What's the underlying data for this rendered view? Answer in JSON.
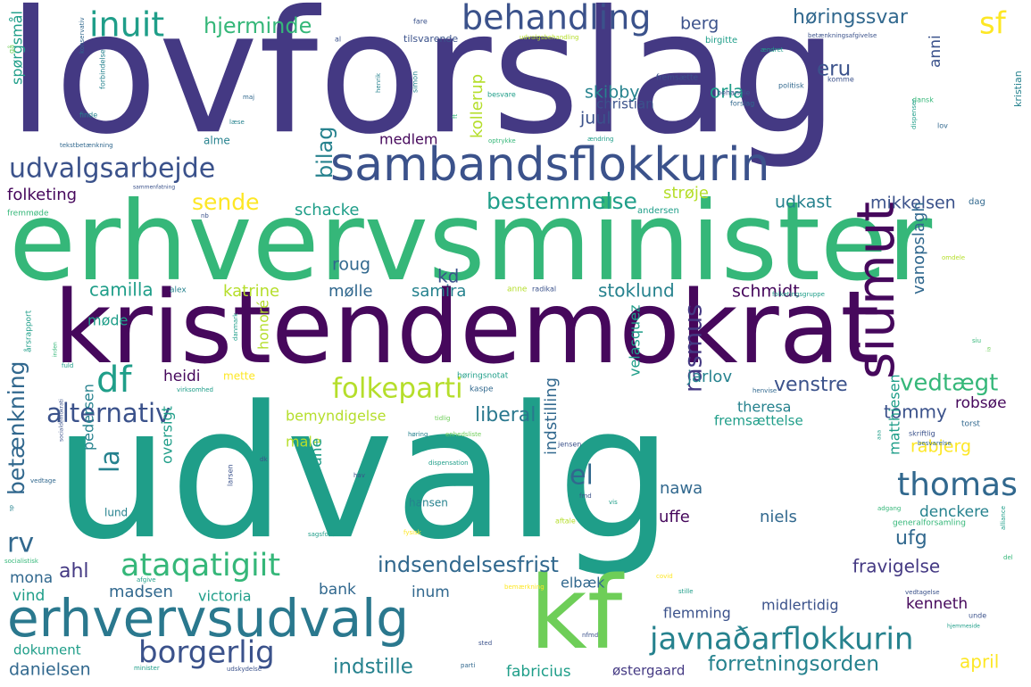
{
  "palette": {
    "c0": "#443983",
    "c1": "#3b528b",
    "c2": "#31688e",
    "c3": "#26828e",
    "c4": "#1f9e89",
    "c5": "#35b779",
    "c6": "#6ece58",
    "c7": "#b5de2b",
    "c8": "#fde725",
    "c9": "#46085c",
    "c10": "#2a788e"
  },
  "words": [
    {
      "text": "lovforslag",
      "color": "c0"
    },
    {
      "text": "erhvervsminister",
      "color": "c5"
    },
    {
      "text": "kristendemokrat",
      "color": "c9"
    },
    {
      "text": "udvalg",
      "color": "c4"
    },
    {
      "text": "sambandsflokkurin",
      "color": "c1"
    },
    {
      "text": "erhvervsudvalg",
      "color": "c10"
    },
    {
      "text": "kf",
      "color": "c6"
    },
    {
      "text": "siumut",
      "color": "c9"
    },
    {
      "text": "behandling",
      "color": "c1"
    },
    {
      "text": "inuit",
      "color": "c4"
    },
    {
      "text": "udvalgsarbejde",
      "color": "c1"
    },
    {
      "text": "javnaðarflokkurin",
      "color": "c3"
    },
    {
      "text": "ataqatigiit",
      "color": "c5"
    },
    {
      "text": "borgerlig",
      "color": "c1"
    },
    {
      "text": "thomas",
      "color": "c2"
    },
    {
      "text": "folkeparti",
      "color": "c7"
    },
    {
      "text": "alternativ",
      "color": "c1"
    },
    {
      "text": "df",
      "color": "c4"
    },
    {
      "text": "rv",
      "color": "c2"
    },
    {
      "text": "sf",
      "color": "c8"
    },
    {
      "text": "hjerminde",
      "color": "c5"
    },
    {
      "text": "høringssvar",
      "color": "c2"
    },
    {
      "text": "bestemmelse",
      "color": "c4"
    },
    {
      "text": "sende",
      "color": "c8"
    },
    {
      "text": "betænkning",
      "color": "c2"
    },
    {
      "text": "bilag",
      "color": "c3"
    },
    {
      "text": "vedtægt",
      "color": "c5"
    },
    {
      "text": "indsendelsesfrist",
      "color": "c2"
    },
    {
      "text": "forretningsorden",
      "color": "c3"
    },
    {
      "text": "indstille",
      "color": "c3"
    },
    {
      "text": "rasmus",
      "color": "c0"
    },
    {
      "text": "el",
      "color": "c2"
    },
    {
      "text": "la",
      "color": "c3"
    },
    {
      "text": "venstre",
      "color": "c1"
    },
    {
      "text": "liberal",
      "color": "c10"
    },
    {
      "text": "eru",
      "color": "c1"
    },
    {
      "text": "skibby",
      "color": "c3"
    },
    {
      "text": "orla",
      "color": "c4"
    },
    {
      "text": "juul",
      "color": "c1"
    },
    {
      "text": "berg",
      "color": "c1"
    },
    {
      "text": "kollerup",
      "color": "c7"
    },
    {
      "text": "udkast",
      "color": "c3"
    },
    {
      "text": "mikkelsen",
      "color": "c1"
    },
    {
      "text": "strøje",
      "color": "c7"
    },
    {
      "text": "schacke",
      "color": "c4"
    },
    {
      "text": "folketing",
      "color": "c9"
    },
    {
      "text": "spørgsmål",
      "color": "c4"
    },
    {
      "text": "medlem",
      "color": "c9"
    },
    {
      "text": "christian",
      "color": "c1"
    },
    {
      "text": "anni",
      "color": "c1"
    },
    {
      "text": "kristian",
      "color": "c3"
    },
    {
      "text": "roug",
      "color": "c2"
    },
    {
      "text": "kd",
      "color": "c1"
    },
    {
      "text": "camilla",
      "color": "c4"
    },
    {
      "text": "katrine",
      "color": "c7"
    },
    {
      "text": "mølle",
      "color": "c2"
    },
    {
      "text": "samira",
      "color": "c3"
    },
    {
      "text": "stoklund",
      "color": "c3"
    },
    {
      "text": "schmidt",
      "color": "c9"
    },
    {
      "text": "vanopslagh",
      "color": "c2"
    },
    {
      "text": "møde",
      "color": "c4"
    },
    {
      "text": "heidi",
      "color": "c9"
    },
    {
      "text": "honoré",
      "color": "c7"
    },
    {
      "text": "jarlov",
      "color": "c3"
    },
    {
      "text": "tommy",
      "color": "c1"
    },
    {
      "text": "theresa",
      "color": "c3"
    },
    {
      "text": "robsøe",
      "color": "c9"
    },
    {
      "text": "rabjerg",
      "color": "c8"
    },
    {
      "text": "bemyndigelse",
      "color": "c7"
    },
    {
      "text": "male",
      "color": "c7"
    },
    {
      "text": "fremsættelse",
      "color": "c4"
    },
    {
      "text": "velasquez",
      "color": "c4"
    },
    {
      "text": "matthiesen",
      "color": "c4"
    },
    {
      "text": "pedersen",
      "color": "c3"
    },
    {
      "text": "rune",
      "color": "c4"
    },
    {
      "text": "oversigt",
      "color": "c4"
    },
    {
      "text": "nawa",
      "color": "c2"
    },
    {
      "text": "denckere",
      "color": "c3"
    },
    {
      "text": "niels",
      "color": "c2"
    },
    {
      "text": "indstilling",
      "color": "c2"
    },
    {
      "text": "uffe",
      "color": "c9"
    },
    {
      "text": "ufg",
      "color": "c2"
    },
    {
      "text": "fravigelse",
      "color": "c0"
    },
    {
      "text": "ahl",
      "color": "c0"
    },
    {
      "text": "mona",
      "color": "c2"
    },
    {
      "text": "vind",
      "color": "c4"
    },
    {
      "text": "madsen",
      "color": "c2"
    },
    {
      "text": "victoria",
      "color": "c4"
    },
    {
      "text": "bank",
      "color": "c2"
    },
    {
      "text": "inum",
      "color": "c2"
    },
    {
      "text": "elbæk",
      "color": "c2"
    },
    {
      "text": "kenneth",
      "color": "c9"
    },
    {
      "text": "flemming",
      "color": "c1"
    },
    {
      "text": "midlertidig",
      "color": "c1"
    },
    {
      "text": "danielsen",
      "color": "c2"
    },
    {
      "text": "fabricius",
      "color": "c4"
    },
    {
      "text": "østergaard",
      "color": "c0"
    },
    {
      "text": "april",
      "color": "c8"
    },
    {
      "text": "dokument",
      "color": "c4"
    },
    {
      "text": "lund",
      "color": "c3"
    },
    {
      "text": "hansen",
      "color": "c3"
    },
    {
      "text": "alme",
      "color": "c3"
    },
    {
      "text": "mette",
      "color": "c8"
    },
    {
      "text": "tilsvarende",
      "color": "c1"
    },
    {
      "text": "birgitte",
      "color": "c4"
    },
    {
      "text": "fremsætte",
      "color": "c1"
    },
    {
      "text": "forslag",
      "color": "c2"
    },
    {
      "text": "behandle",
      "color": "c1"
    },
    {
      "text": "politisk",
      "color": "c2"
    },
    {
      "text": "komme",
      "color": "c1"
    },
    {
      "text": "dansk",
      "color": "c5"
    },
    {
      "text": "lov",
      "color": "c2"
    },
    {
      "text": "dag",
      "color": "c2"
    },
    {
      "text": "andersen",
      "color": "c4"
    },
    {
      "text": "betænkningsafgivelse",
      "color": "c1"
    },
    {
      "text": "udvalgsbehandling",
      "color": "c7"
    },
    {
      "text": "ændret",
      "color": "c4"
    },
    {
      "text": "fare",
      "color": "c1"
    },
    {
      "text": "konservativ",
      "color": "c2"
    },
    {
      "text": "forbindelse",
      "color": "c3"
    },
    {
      "text": "henrik",
      "color": "c3"
    },
    {
      "text": "simon",
      "color": "c3"
    },
    {
      "text": "besvare",
      "color": "c4"
    },
    {
      "text": "finde",
      "color": "c3"
    },
    {
      "text": "læse",
      "color": "c3"
    },
    {
      "text": "tekstbetænkning",
      "color": "c2"
    },
    {
      "text": "optrykke",
      "color": "c5"
    },
    {
      "text": "ændring",
      "color": "c4"
    },
    {
      "text": "sammenfatning",
      "color": "c1"
    },
    {
      "text": "fremmøde",
      "color": "c5"
    },
    {
      "text": "dispenser",
      "color": "c4"
    },
    {
      "text": "al",
      "color": "c1"
    },
    {
      "text": "gå",
      "color": "c6"
    },
    {
      "text": "maj",
      "color": "c2"
    },
    {
      "text": "ft",
      "color": "c5"
    },
    {
      "text": "nb",
      "color": "c1"
    },
    {
      "text": "alex",
      "color": "c3"
    },
    {
      "text": "anne",
      "color": "c7"
    },
    {
      "text": "radikal",
      "color": "c1"
    },
    {
      "text": "folketingsgruppe",
      "color": "c4"
    },
    {
      "text": "omdele",
      "color": "c7"
    },
    {
      "text": "danmark",
      "color": "c4"
    },
    {
      "text": "årsrapport",
      "color": "c4"
    },
    {
      "text": "inden",
      "color": "c5"
    },
    {
      "text": "fuld",
      "color": "c4"
    },
    {
      "text": "virksomhed",
      "color": "c4"
    },
    {
      "text": "høringsnotat",
      "color": "c4"
    },
    {
      "text": "kaspe",
      "color": "c2"
    },
    {
      "text": "henvise",
      "color": "c2"
    },
    {
      "text": "torst",
      "color": "c2"
    },
    {
      "text": "siu",
      "color": "c5"
    },
    {
      "text": "ia",
      "color": "c6"
    },
    {
      "text": "tidlig",
      "color": "c6"
    },
    {
      "text": "høring",
      "color": "c3"
    },
    {
      "text": "enhedsliste",
      "color": "c6"
    },
    {
      "text": "jensen",
      "color": "c1"
    },
    {
      "text": "skriftlig",
      "color": "c1"
    },
    {
      "text": "besvarelse",
      "color": "c2"
    },
    {
      "text": "aaa",
      "color": "c4"
    },
    {
      "text": "socialdemokrati",
      "color": "c1"
    },
    {
      "text": "dk",
      "color": "c1"
    },
    {
      "text": "hav",
      "color": "c1"
    },
    {
      "text": "vedtage",
      "color": "c2"
    },
    {
      "text": "larsen",
      "color": "c1"
    },
    {
      "text": "dispensation",
      "color": "c4"
    },
    {
      "text": "fmd",
      "color": "c1"
    },
    {
      "text": "vis",
      "color": "c4"
    },
    {
      "text": "adgang",
      "color": "c5"
    },
    {
      "text": "generalforsamling",
      "color": "c5"
    },
    {
      "text": "aftale",
      "color": "c7"
    },
    {
      "text": "fysisk",
      "color": "c8"
    },
    {
      "text": "sp",
      "color": "c3"
    },
    {
      "text": "sagsforløb",
      "color": "c4"
    },
    {
      "text": "socialistisk",
      "color": "c5"
    },
    {
      "text": "afgive",
      "color": "c4"
    },
    {
      "text": "bemærkning",
      "color": "c8"
    },
    {
      "text": "vedtagelse",
      "color": "c1"
    },
    {
      "text": "alliance",
      "color": "c4"
    },
    {
      "text": "del",
      "color": "c5"
    },
    {
      "text": "covid",
      "color": "c8"
    },
    {
      "text": "stille",
      "color": "c4"
    },
    {
      "text": "unde",
      "color": "c1"
    },
    {
      "text": "hjemmeside",
      "color": "c4"
    },
    {
      "text": "minister",
      "color": "c4"
    },
    {
      "text": "udskydelse",
      "color": "c1"
    },
    {
      "text": "parti",
      "color": "c2"
    },
    {
      "text": "sted",
      "color": "c1"
    },
    {
      "text": "nfmd",
      "color": "c1"
    }
  ]
}
